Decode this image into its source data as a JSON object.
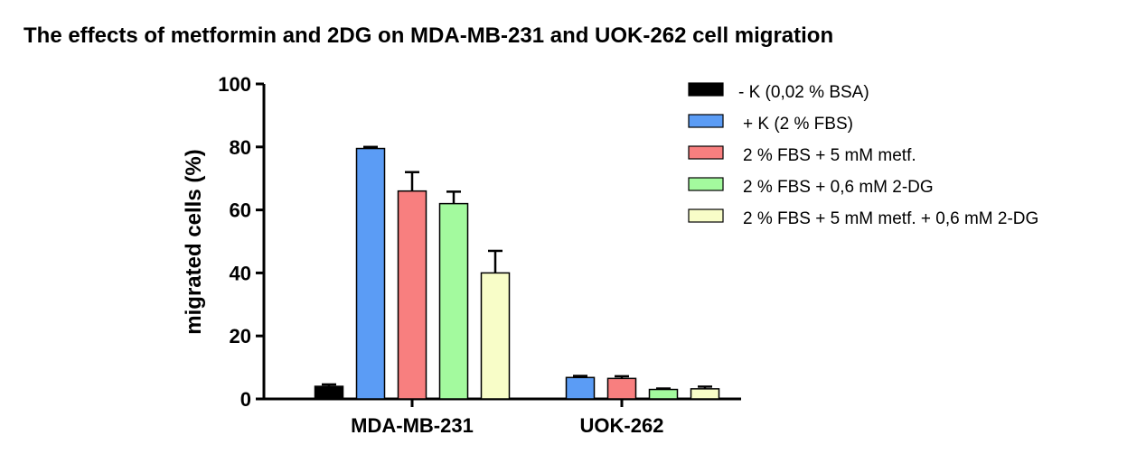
{
  "chart_data": {
    "type": "bar",
    "title": "The effects of metformin and 2DG on MDA-MB-231 and UOK-262 cell migration",
    "ylabel": "migrated cells (%)",
    "xlabel": "",
    "ylim": [
      0,
      100
    ],
    "yticks": [
      "0",
      "20",
      "40",
      "60",
      "80",
      "100"
    ],
    "categories": [
      "MDA-MB-231",
      "UOK-262"
    ],
    "series": [
      {
        "name": "- K (0,02 % BSA)",
        "color": "#000000",
        "values": [
          4,
          null
        ],
        "errors": [
          0.6,
          null
        ]
      },
      {
        "name": "+ K (2 % FBS)",
        "color": "#5b9cf5",
        "values": [
          79.5,
          6.8
        ],
        "errors": [
          0.5,
          0.5
        ]
      },
      {
        "name": "2 % FBS + 5 mM metf.",
        "color": "#f87f7f",
        "values": [
          66,
          6.5
        ],
        "errors": [
          6,
          0.7
        ]
      },
      {
        "name": "2 % FBS + 0,6 mM 2-DG",
        "color": "#a3fa9e",
        "values": [
          62,
          3
        ],
        "errors": [
          3.8,
          0.3
        ]
      },
      {
        "name": "2 % FBS + 5 mM metf. + 0,6 mM 2-DG",
        "color": "#f8fdc8",
        "values": [
          40,
          3.2
        ],
        "errors": [
          7,
          0.7
        ]
      }
    ],
    "grid": false,
    "legend_position": "right"
  }
}
